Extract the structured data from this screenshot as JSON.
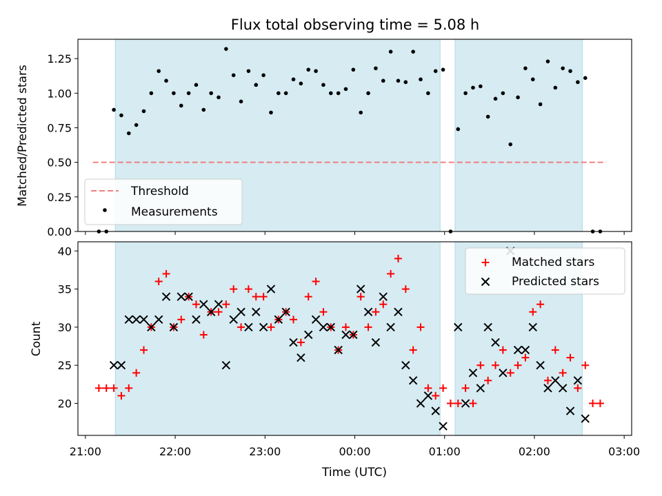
{
  "chart_data": [
    {
      "type": "scatter",
      "title": "Flux total observing time = 5.08 h",
      "ylabel": "Matched/Predicted stars",
      "xlabel": "",
      "ylim": [
        0,
        1.39
      ],
      "yticks": [
        0.0,
        0.25,
        0.5,
        0.75,
        1.0,
        1.25
      ],
      "ytick_labels": [
        "0.00",
        "0.25",
        "0.50",
        "0.75",
        "1.00",
        "1.25"
      ],
      "shaded_spans": [
        [
          "21:20",
          "00:57"
        ],
        [
          "01:07",
          "02:32"
        ]
      ],
      "threshold": {
        "y": 0.5,
        "x_range": [
          "21:05",
          "02:48"
        ],
        "color": "#f08080"
      },
      "legend": {
        "placement": "lower-left",
        "entries": [
          "Threshold",
          "Measurements"
        ]
      },
      "series": [
        {
          "name": "Measurements",
          "color": "#000000",
          "x": [
            "21:09",
            "21:14",
            "21:19",
            "21:24",
            "21:29",
            "21:34",
            "21:39",
            "21:44",
            "21:49",
            "21:54",
            "21:59",
            "22:04",
            "22:09",
            "22:14",
            "22:19",
            "22:24",
            "22:29",
            "22:34",
            "22:39",
            "22:44",
            "22:49",
            "22:54",
            "22:59",
            "23:04",
            "23:09",
            "23:14",
            "23:19",
            "23:24",
            "23:29",
            "23:34",
            "23:39",
            "23:44",
            "23:49",
            "23:54",
            "23:59",
            "00:04",
            "00:09",
            "00:14",
            "00:19",
            "00:24",
            "00:29",
            "00:34",
            "00:39",
            "00:44",
            "00:49",
            "00:54",
            "00:59",
            "01:04",
            "01:09",
            "01:14",
            "01:19",
            "01:24",
            "01:29",
            "01:34",
            "01:39",
            "01:44",
            "01:49",
            "01:54",
            "01:59",
            "02:04",
            "02:09",
            "02:14",
            "02:19",
            "02:24",
            "02:29",
            "02:34",
            "02:39",
            "02:44"
          ],
          "values": [
            0.0,
            0.0,
            0.88,
            0.84,
            0.71,
            0.77,
            0.87,
            1.0,
            1.16,
            1.09,
            1.0,
            0.91,
            1.0,
            1.06,
            0.88,
            1.0,
            0.97,
            1.32,
            1.13,
            0.94,
            1.16,
            1.06,
            1.13,
            0.86,
            1.0,
            1.0,
            1.1,
            1.07,
            1.17,
            1.16,
            1.06,
            1.0,
            1.0,
            1.03,
            1.17,
            0.86,
            1.0,
            1.18,
            1.09,
            1.3,
            1.09,
            1.08,
            1.3,
            1.1,
            1.0,
            1.16,
            1.17,
            0.0,
            0.74,
            1.0,
            1.04,
            1.05,
            0.83,
            0.96,
            1.0,
            0.63,
            0.97,
            1.18,
            1.1,
            0.92,
            1.23,
            1.04,
            1.18,
            1.16,
            1.08,
            1.11,
            0.0,
            0.0
          ]
        }
      ]
    },
    {
      "type": "scatter",
      "title": "",
      "ylabel": "Count",
      "xlabel": "Time (UTC)",
      "ylim": [
        15.8,
        41.2
      ],
      "xlim": [
        "20:55",
        "03:05"
      ],
      "yticks": [
        20,
        25,
        30,
        35,
        40
      ],
      "ytick_labels": [
        "20",
        "25",
        "30",
        "35",
        "40"
      ],
      "xticks": [
        "21:00",
        "22:00",
        "23:00",
        "00:00",
        "01:00",
        "02:00",
        "03:00"
      ],
      "legend": {
        "placement": "upper-right",
        "entries": [
          "Matched stars",
          "Predicted stars"
        ]
      },
      "x": [
        "21:09",
        "21:14",
        "21:19",
        "21:24",
        "21:29",
        "21:34",
        "21:39",
        "21:44",
        "21:49",
        "21:54",
        "21:59",
        "22:04",
        "22:09",
        "22:14",
        "22:19",
        "22:24",
        "22:29",
        "22:34",
        "22:39",
        "22:44",
        "22:49",
        "22:54",
        "22:59",
        "23:04",
        "23:09",
        "23:14",
        "23:19",
        "23:24",
        "23:29",
        "23:34",
        "23:39",
        "23:44",
        "23:49",
        "23:54",
        "23:59",
        "00:04",
        "00:09",
        "00:14",
        "00:19",
        "00:24",
        "00:29",
        "00:34",
        "00:39",
        "00:44",
        "00:49",
        "00:54",
        "00:59",
        "01:04",
        "01:09",
        "01:14",
        "01:19",
        "01:24",
        "01:29",
        "01:34",
        "01:39",
        "01:44",
        "01:49",
        "01:54",
        "01:59",
        "02:04",
        "02:09",
        "02:14",
        "02:19",
        "02:24",
        "02:29",
        "02:34",
        "02:39",
        "02:44"
      ],
      "series": [
        {
          "name": "Matched stars",
          "marker": "plus",
          "color": "#ff0000",
          "values": [
            22,
            22,
            22,
            21,
            22,
            24,
            27,
            30,
            36,
            37,
            30,
            31,
            34,
            33,
            29,
            32,
            32,
            33,
            35,
            30,
            35,
            34,
            34,
            30,
            31,
            32,
            31,
            28,
            34,
            36,
            32,
            30,
            27,
            30,
            29,
            34,
            30,
            32,
            33,
            37,
            39,
            35,
            27,
            30,
            22,
            21,
            22,
            20,
            20,
            22,
            20,
            25,
            23,
            25,
            27,
            24,
            25,
            26,
            32,
            33,
            23,
            27,
            24,
            26,
            22,
            25,
            20,
            20
          ]
        },
        {
          "name": "Predicted stars",
          "marker": "x",
          "color": "#000000",
          "values": [
            null,
            null,
            25,
            25,
            31,
            31,
            31,
            30,
            31,
            34,
            30,
            34,
            34,
            31,
            33,
            32,
            33,
            25,
            31,
            32,
            30,
            32,
            30,
            35,
            31,
            32,
            28,
            26,
            29,
            31,
            30,
            30,
            27,
            29,
            29,
            35,
            32,
            28,
            34,
            30,
            32,
            25,
            23,
            20,
            21,
            19,
            17,
            null,
            30,
            20,
            24,
            22,
            30,
            28,
            24,
            40,
            27,
            27,
            30,
            25,
            22,
            23,
            22,
            19,
            23,
            18,
            null,
            null
          ]
        }
      ]
    }
  ]
}
